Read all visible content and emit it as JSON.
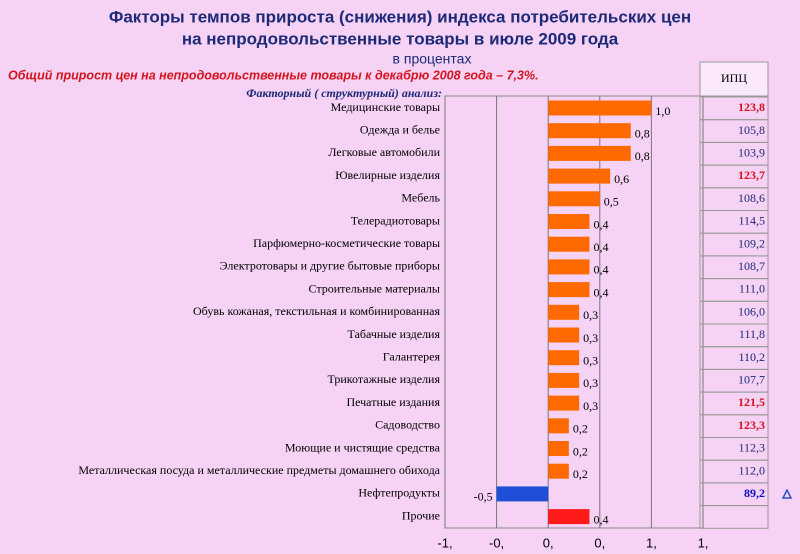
{
  "title": [
    "Факторы темпов прироста (снижения) индекса потребительских цен",
    "на непродовольственные товары в июле 2009 года"
  ],
  "chart_data": {
    "type": "hbar",
    "subtitle": "в процентах",
    "note": "Общий прирост цен на непродовольственные товары к декабрю 2008 года – 7,3%.",
    "analysis_label": "Факторный ( структурный) анализ:",
    "categories": [
      "Медицинские товары",
      "Одежда и белье",
      "Легковые автомобили",
      "Ювелирные изделия",
      "Мебель",
      "Телерадиотовары",
      "Парфюмерно-косметические товары",
      "Электротовары и другие бытовые приборы",
      "Строительные материалы",
      "Обувь кожаная, текстильная и комбинированная",
      "Табачные изделия",
      "Галантерея",
      "Трикотажные изделия",
      "Печатные издания",
      "Садоводство",
      "Моющие и чистящие средства",
      "Металлическая посуда и металлические предметы домашнего обихода",
      "Нефтепродукты",
      "Прочие"
    ],
    "values": [
      1.0,
      0.8,
      0.8,
      0.6,
      0.5,
      0.4,
      0.4,
      0.4,
      0.4,
      0.3,
      0.3,
      0.3,
      0.3,
      0.3,
      0.2,
      0.2,
      0.2,
      -0.5,
      0.4
    ],
    "value_labels": [
      "1,0",
      "0,8",
      "0,8",
      "0,6",
      "0,5",
      "0,4",
      "0,4",
      "0,4",
      "0,4",
      "0,3",
      "0,3",
      "0,3",
      "0,3",
      "0,3",
      "0,2",
      "0,2",
      "0,2",
      "-0,5",
      "0,4"
    ],
    "bar_colors": [
      "#ff6a00",
      "#ff6a00",
      "#ff6a00",
      "#ff6a00",
      "#ff6a00",
      "#ff6a00",
      "#ff6a00",
      "#ff6a00",
      "#ff6a00",
      "#ff6a00",
      "#ff6a00",
      "#ff6a00",
      "#ff6a00",
      "#ff6a00",
      "#ff6a00",
      "#ff6a00",
      "#ff6a00",
      "#1f4fd8",
      "#ff1a1a"
    ],
    "xlim": [
      -1,
      1.5
    ],
    "xticks": [
      {
        "value": -1,
        "label": "-1,"
      },
      {
        "value": -0.5,
        "label": "-0,"
      },
      {
        "value": 0,
        "label": "0,"
      },
      {
        "value": 0.5,
        "label": "0,"
      },
      {
        "value": 1,
        "label": "1,"
      },
      {
        "value": 1.5,
        "label": "1,"
      }
    ],
    "grid": true
  },
  "table": {
    "header": "ИПЦ",
    "rows": [
      {
        "text": "123,8",
        "color": "#d4141e"
      },
      {
        "text": "105,8",
        "color": "#1c2a78"
      },
      {
        "text": "103,9",
        "color": "#1c2a78"
      },
      {
        "text": "123,7",
        "color": "#d4141e"
      },
      {
        "text": "108,6",
        "color": "#1c2a78"
      },
      {
        "text": "114,5",
        "color": "#1c2a78"
      },
      {
        "text": "109,2",
        "color": "#1c2a78"
      },
      {
        "text": "108,7",
        "color": "#1c2a78"
      },
      {
        "text": "111,0",
        "color": "#1c2a78"
      },
      {
        "text": "106,0",
        "color": "#1c2a78"
      },
      {
        "text": "111,8",
        "color": "#1c2a78"
      },
      {
        "text": "110,2",
        "color": "#1c2a78"
      },
      {
        "text": "107,7",
        "color": "#1c2a78"
      },
      {
        "text": "121,5",
        "color": "#d4141e"
      },
      {
        "text": "123,3",
        "color": "#d4141e"
      },
      {
        "text": "112,3",
        "color": "#1c2a78"
      },
      {
        "text": "112,0",
        "color": "#1c2a78"
      },
      {
        "text": "89,2",
        "color": "#1010c0"
      },
      {
        "text": "",
        "color": "#1c2a78"
      }
    ]
  }
}
